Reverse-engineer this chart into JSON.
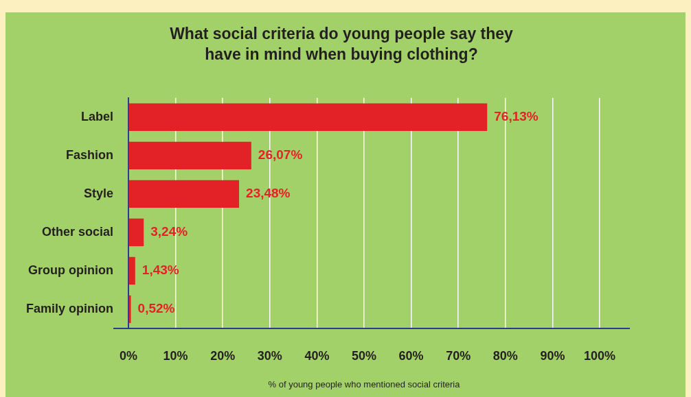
{
  "chart_data": {
    "type": "bar",
    "orientation": "horizontal",
    "title": "What social criteria do young people say they have in mind when buying clothing?",
    "xlabel": "% of young people who mentioned social criteria",
    "categories": [
      "Label",
      "Fashion",
      "Style",
      "Other social",
      "Group opinion",
      "Family opinion"
    ],
    "values": [
      76.13,
      26.07,
      23.48,
      3.24,
      1.43,
      0.52
    ],
    "value_labels": [
      "76,13%",
      "26,07%",
      "23,48%",
      "3,24%",
      "1,43%",
      "0,52%"
    ],
    "color": "#e32228",
    "xlim": [
      0,
      100
    ],
    "xticks": [
      {
        "value": 0,
        "label": "0%"
      },
      {
        "value": 10,
        "label": "10%"
      },
      {
        "value": 20,
        "label": "20%"
      },
      {
        "value": 30,
        "label": "30%"
      },
      {
        "value": 40,
        "label": "40%"
      },
      {
        "value": 50,
        "label": "50%"
      },
      {
        "value": 60,
        "label": "60%"
      },
      {
        "value": 70,
        "label": "70%"
      },
      {
        "value": 80,
        "label": "80%"
      },
      {
        "value": 90,
        "label": "90%"
      },
      {
        "value": 100,
        "label": "100%"
      }
    ],
    "grid": "x"
  }
}
